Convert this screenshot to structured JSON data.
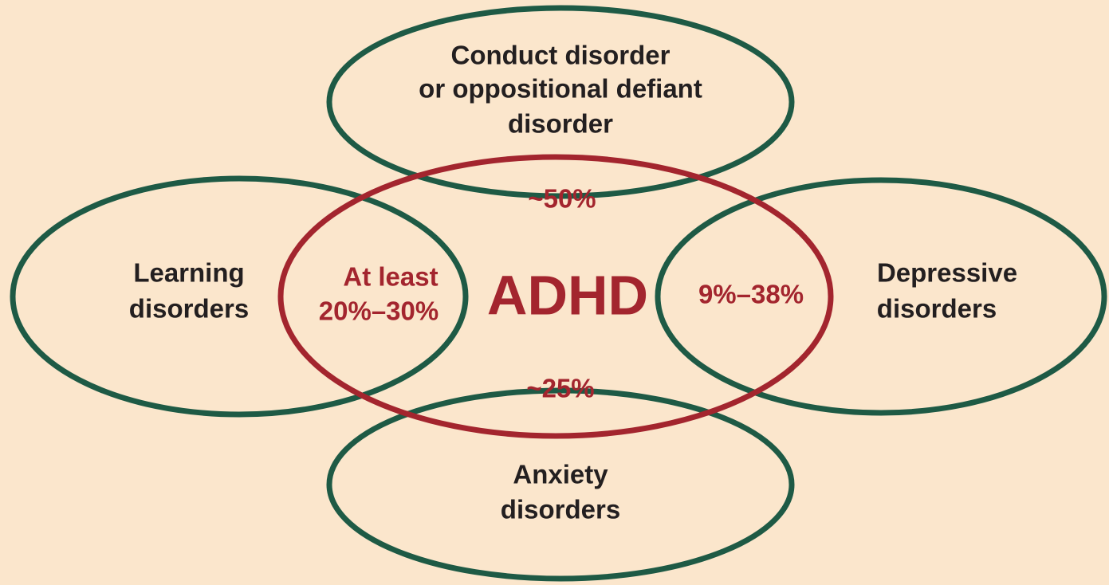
{
  "center": {
    "label": "ADHD"
  },
  "nodes": [
    {
      "label": [
        "Conduct disorder",
        "or oppositional defiant",
        "disorder"
      ],
      "overlap": [
        "~50%"
      ]
    },
    {
      "label": [
        "Learning",
        "disorders"
      ],
      "overlap": [
        "At least",
        "20%–30%"
      ]
    },
    {
      "label": [
        "Depressive",
        "disorders"
      ],
      "overlap": [
        "9%–38%"
      ]
    },
    {
      "label": [
        "Anxiety",
        "disorders"
      ],
      "overlap": [
        "~25%"
      ]
    }
  ]
}
